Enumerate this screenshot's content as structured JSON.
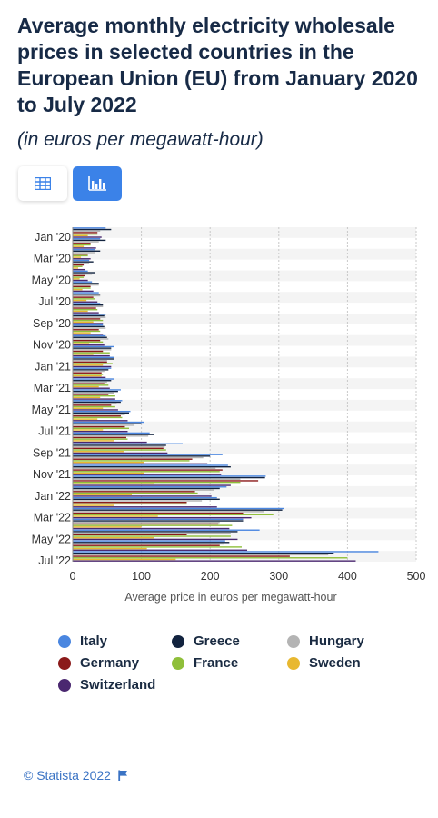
{
  "title": "Average monthly electricity wholesale prices in selected countries in the European Union (EU) from January 2020 to July 2022",
  "subtitle": "(in euros per megawatt-hour)",
  "view_toggle": {
    "table_icon": "table-icon",
    "chart_icon": "bar-chart-icon",
    "active": "chart"
  },
  "credit": {
    "text": "© Statista 2022",
    "icon": "flag-icon"
  },
  "colors": {
    "Italy": "#4a86e0",
    "Greece": "#12233f",
    "Hungary": "#b4b4b4",
    "Germany": "#8b1a1a",
    "France": "#8fbf3a",
    "Sweden": "#e8b830",
    "Switzerland": "#4a2870"
  },
  "chart_data": {
    "type": "bar",
    "orientation": "horizontal",
    "xlabel": "Average price in euros per megawatt-hour",
    "ylabel": "",
    "xlim": [
      0,
      500
    ],
    "xticks": [
      0,
      100,
      200,
      300,
      400,
      500
    ],
    "grid": true,
    "legend_position": "bottom",
    "categories": [
      "Jan '20",
      "Feb '20",
      "Mar '20",
      "Apr '20",
      "May '20",
      "Jun '20",
      "Jul '20",
      "Aug '20",
      "Sep '20",
      "Oct '20",
      "Nov '20",
      "Dec '20",
      "Jan '21",
      "Feb '21",
      "Mar '21",
      "Apr '21",
      "May '21",
      "Jun '21",
      "Jul '21",
      "Aug '21",
      "Sep '21",
      "Oct '21",
      "Nov '21",
      "Dec '21",
      "Jan '22",
      "Feb '22",
      "Mar '22",
      "Apr '22",
      "May '22",
      "Jun '22",
      "Jul '22"
    ],
    "category_labels": [
      "Jan '20",
      "",
      "Mar '20",
      "",
      "May '20",
      "",
      "Jul '20",
      "",
      "Sep '20",
      "",
      "Nov '20",
      "",
      "Jan '21",
      "",
      "Mar '21",
      "",
      "May '21",
      "",
      "Jul '21",
      "",
      "Sep '21",
      "",
      "Nov '21",
      "",
      "Jan '22",
      "",
      "Mar '22",
      "",
      "May '22",
      "",
      "Jul '22"
    ],
    "series": [
      {
        "name": "Italy",
        "values": [
          48,
          40,
          32,
          24,
          22,
          28,
          38,
          40,
          48,
          44,
          48,
          60,
          60,
          56,
          60,
          70,
          72,
          84,
          104,
          112,
          160,
          218,
          226,
          281,
          224,
          210,
          308,
          248,
          272,
          222,
          445
        ]
      },
      {
        "name": "Greece",
        "values": [
          56,
          48,
          40,
          30,
          32,
          38,
          40,
          44,
          46,
          46,
          50,
          56,
          60,
          52,
          56,
          66,
          70,
          82,
          100,
          118,
          136,
          200,
          230,
          280,
          214,
          214,
          305,
          248,
          240,
          228,
          380
        ]
      },
      {
        "name": "Hungary",
        "values": [
          40,
          38,
          32,
          24,
          28,
          38,
          40,
          44,
          48,
          48,
          52,
          56,
          50,
          46,
          50,
          60,
          64,
          76,
          90,
          110,
          134,
          190,
          208,
          244,
          206,
          188,
          278,
          214,
          230,
          220,
          372
        ]
      },
      {
        "name": "Germany",
        "values": [
          36,
          26,
          22,
          16,
          18,
          26,
          30,
          34,
          40,
          38,
          40,
          44,
          50,
          42,
          46,
          52,
          56,
          70,
          76,
          78,
          132,
          174,
          218,
          270,
          178,
          166,
          248,
          212,
          166,
          214,
          316
        ]
      },
      {
        "name": "France",
        "values": [
          36,
          26,
          22,
          14,
          16,
          26,
          32,
          36,
          44,
          40,
          44,
          54,
          58,
          44,
          52,
          62,
          62,
          72,
          82,
          80,
          136,
          170,
          214,
          244,
          182,
          166,
          292,
          232,
          230,
          246,
          400
        ]
      },
      {
        "name": "Sweden",
        "values": [
          22,
          16,
          12,
          8,
          10,
          14,
          20,
          22,
          30,
          26,
          24,
          30,
          44,
          42,
          38,
          40,
          44,
          36,
          44,
          60,
          74,
          104,
          104,
          118,
          86,
          60,
          124,
          100,
          118,
          108,
          150
        ]
      },
      {
        "name": "Switzerland",
        "values": [
          42,
          34,
          26,
          18,
          22,
          30,
          36,
          38,
          44,
          44,
          46,
          54,
          56,
          48,
          54,
          62,
          66,
          80,
          80,
          108,
          138,
          196,
          216,
          230,
          202,
          210,
          260,
          228,
          240,
          254,
          412
        ]
      }
    ]
  }
}
